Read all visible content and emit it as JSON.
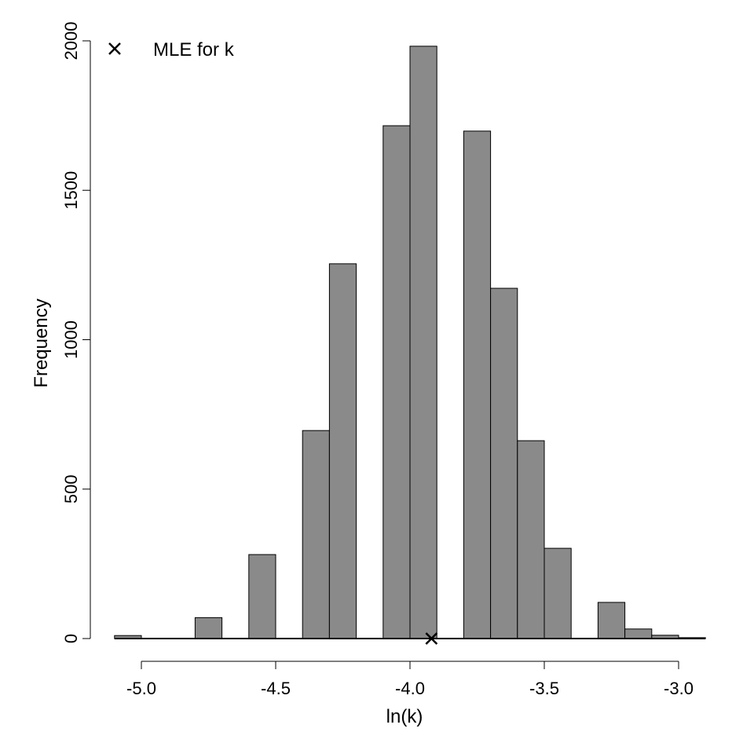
{
  "chart_data": {
    "type": "bar",
    "title": "",
    "xlabel": "ln(k)",
    "ylabel": "Frequency",
    "xlim": [
      -5.1,
      -2.9
    ],
    "ylim": [
      0,
      2000
    ],
    "bin_width": 0.1,
    "bin_starts": [
      -5.1,
      -5.0,
      -4.9,
      -4.8,
      -4.7,
      -4.6,
      -4.5,
      -4.4,
      -4.3,
      -4.2,
      -4.1,
      -4.0,
      -3.9,
      -3.8,
      -3.7,
      -3.6,
      -3.5,
      -3.4,
      -3.3,
      -3.2,
      -3.1,
      -3.0
    ],
    "values": [
      10,
      0,
      0,
      70,
      0,
      281,
      0,
      696,
      1254,
      0,
      1716,
      1982,
      0,
      1698,
      1172,
      662,
      302,
      0,
      121,
      32,
      11,
      3
    ],
    "bar_color": "#8a8a8a",
    "x_ticks": [
      -5.0,
      -4.5,
      -4.0,
      -3.5,
      -3.0
    ],
    "x_tick_labels": [
      "-5.0",
      "-4.5",
      "-4.0",
      "-3.5",
      "-3.0"
    ],
    "y_ticks": [
      0,
      500,
      1000,
      1500,
      2000
    ],
    "y_tick_labels": [
      "0",
      "500",
      "1000",
      "1500",
      "2000"
    ],
    "grid": false,
    "mle": {
      "x": -3.92,
      "y": 0,
      "marker": "x"
    },
    "legend": {
      "placement": "top-left",
      "entries": [
        "MLE for k"
      ]
    }
  }
}
